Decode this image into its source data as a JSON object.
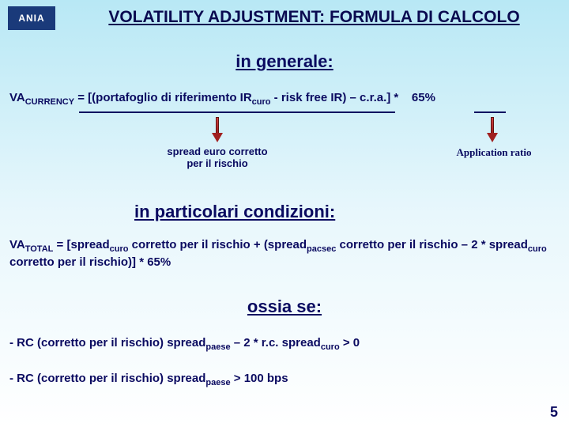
{
  "logo": "ANIA",
  "title": "VOLATILITY ADJUSTMENT: FORMULA DI CALCOLO",
  "section1": "in generale:",
  "formula1_html": "VA<sub>CURRENCY</sub> = [(portafoglio di riferimento IR<sub>curo</sub> - risk free IR) – c.r.a.] *&nbsp;&nbsp;&nbsp;&nbsp;65%",
  "label_spread": "spread euro corretto per il rischio",
  "label_ratio": "Application ratio",
  "section2": "in particolari condizioni:",
  "formula2_html": "VA<sub>TOTAL</sub> = [spread<sub>curo</sub> corretto per il rischio + (spread<sub>pacsec</sub> corretto per il rischio – 2 * spread<sub>curo</sub> corretto per il rischio)] * 65%",
  "section3": "ossia se:",
  "cond1_html": "- RC (corretto per il rischio) spread<sub>paese</sub> – 2 * r.c. spread<sub>curo</sub> > 0",
  "cond2_html": "- RC (corretto per il rischio) spread<sub>paese</sub> > 100 bps",
  "pagenum": "5"
}
